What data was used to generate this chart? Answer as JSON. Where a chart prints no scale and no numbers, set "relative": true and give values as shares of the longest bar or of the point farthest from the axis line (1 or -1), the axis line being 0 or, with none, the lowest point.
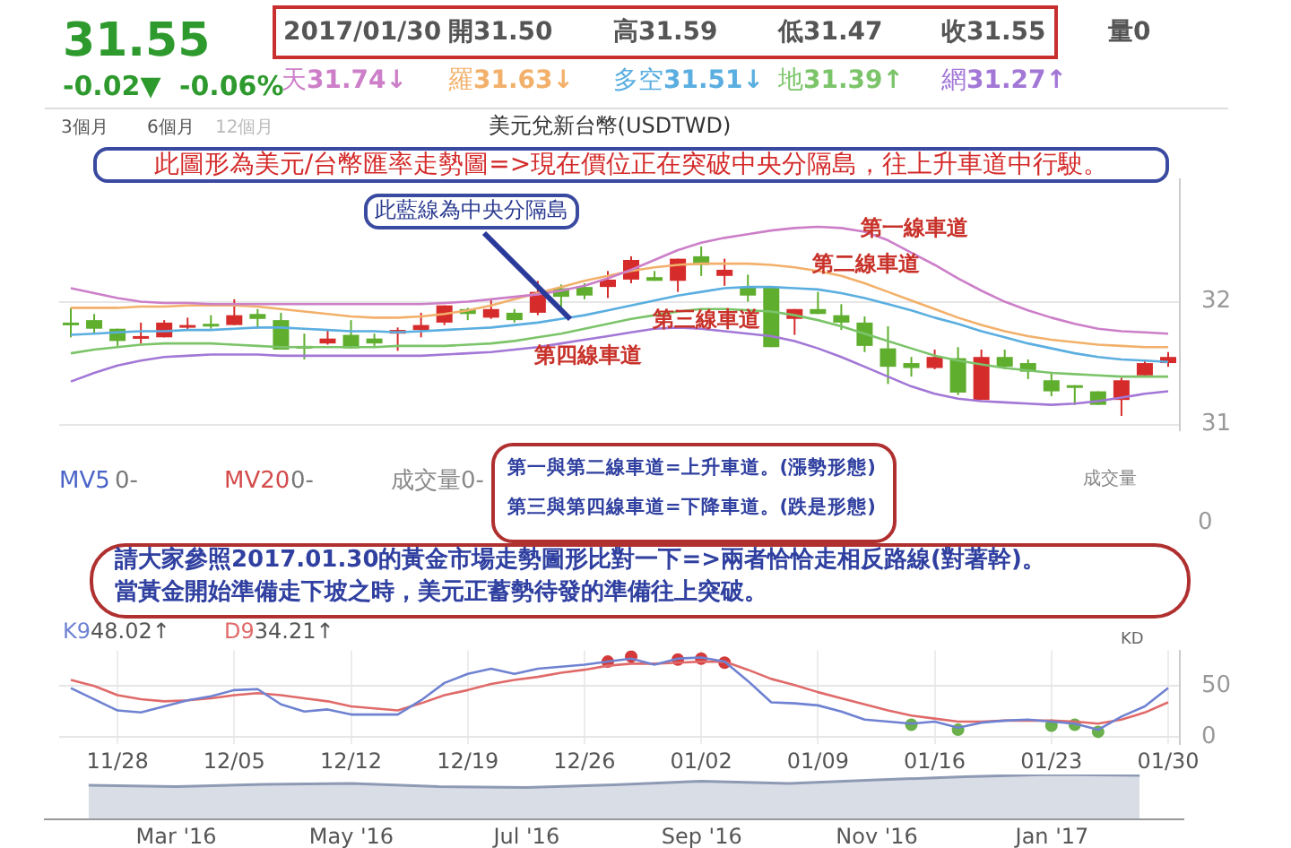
{
  "chart_data": [
    {
      "type": "candlestick",
      "title": "美元兌新台幣(USDTWD)",
      "categories": [
        null,
        null,
        null,
        null,
        null,
        null,
        null,
        null,
        null,
        null,
        null,
        null,
        null,
        null,
        null,
        null,
        null,
        null,
        null,
        null,
        null,
        null,
        null,
        null,
        null,
        null,
        null,
        null,
        null,
        null,
        null,
        null,
        null,
        null,
        null,
        null,
        null,
        null,
        null,
        null,
        null,
        null,
        null,
        null,
        null,
        null,
        null,
        null
      ],
      "ohlc": [
        [
          31.83,
          31.95,
          31.71,
          31.82
        ],
        [
          31.85,
          31.9,
          31.74,
          31.78
        ],
        [
          31.78,
          31.78,
          31.64,
          31.68
        ],
        [
          31.7,
          31.83,
          31.66,
          31.72
        ],
        [
          31.71,
          31.85,
          31.71,
          31.83
        ],
        [
          31.79,
          31.87,
          31.77,
          31.81
        ],
        [
          31.82,
          31.89,
          31.78,
          31.8
        ],
        [
          31.81,
          32.02,
          31.81,
          31.89
        ],
        [
          31.9,
          31.94,
          31.78,
          31.86
        ],
        [
          31.85,
          31.91,
          31.61,
          31.61
        ],
        [
          31.64,
          31.74,
          31.53,
          31.62
        ],
        [
          31.66,
          31.77,
          31.65,
          31.7
        ],
        [
          31.73,
          31.85,
          31.62,
          31.62
        ],
        [
          31.7,
          31.74,
          31.63,
          31.66
        ],
        [
          31.74,
          31.79,
          31.6,
          31.77
        ],
        [
          31.77,
          31.91,
          31.71,
          31.81
        ],
        [
          31.83,
          31.97,
          31.81,
          31.97
        ],
        [
          31.94,
          31.95,
          31.85,
          31.9
        ],
        [
          31.87,
          32.02,
          31.86,
          31.94
        ],
        [
          31.91,
          31.94,
          31.83,
          31.85
        ],
        [
          31.91,
          32.17,
          31.89,
          32.08
        ],
        [
          32.11,
          32.14,
          31.95,
          32.04
        ],
        [
          32.12,
          32.15,
          32.02,
          32.05
        ],
        [
          32.12,
          32.25,
          32.03,
          32.18
        ],
        [
          32.18,
          32.37,
          32.15,
          32.34
        ],
        [
          32.2,
          32.25,
          32.17,
          32.17
        ],
        [
          32.17,
          32.35,
          32.08,
          32.35
        ],
        [
          32.37,
          32.45,
          32.21,
          32.3
        ],
        [
          32.21,
          32.35,
          32.13,
          32.26
        ],
        [
          32.12,
          32.22,
          32.0,
          32.05
        ],
        [
          32.12,
          32.12,
          31.63,
          31.63
        ],
        [
          31.86,
          31.94,
          31.73,
          31.94
        ],
        [
          31.94,
          32.08,
          31.9,
          31.9
        ],
        [
          31.89,
          31.98,
          31.77,
          31.83
        ],
        [
          31.83,
          31.88,
          31.59,
          31.64
        ],
        [
          31.62,
          31.8,
          31.33,
          31.47
        ],
        [
          31.5,
          31.55,
          31.39,
          31.46
        ],
        [
          31.46,
          31.61,
          31.45,
          31.55
        ],
        [
          31.54,
          31.63,
          31.24,
          31.26
        ],
        [
          31.2,
          31.61,
          31.2,
          31.55
        ],
        [
          31.55,
          31.61,
          31.45,
          31.47
        ],
        [
          31.5,
          31.53,
          31.37,
          31.43
        ],
        [
          31.36,
          31.43,
          31.23,
          31.27
        ],
        [
          31.32,
          31.32,
          31.16,
          31.3
        ],
        [
          31.27,
          31.27,
          31.16,
          31.16
        ],
        [
          31.2,
          31.38,
          31.07,
          31.36
        ],
        [
          31.4,
          31.53,
          31.4,
          31.5
        ],
        [
          31.5,
          31.59,
          31.47,
          31.55
        ]
      ],
      "colors": [
        "#5fae2e",
        "#5fae2e",
        "#5fae2e",
        "#d62b2b",
        "#d62b2b",
        "#d62b2b",
        "#5fae2e",
        "#d62b2b",
        "#5fae2e",
        "#5fae2e",
        "#5fae2e",
        "#d62b2b",
        "#5fae2e",
        "#5fae2e",
        "#d62b2b",
        "#d62b2b",
        "#d62b2b",
        "#5fae2e",
        "#d62b2b",
        "#5fae2e",
        "#d62b2b",
        "#5fae2e",
        "#5fae2e",
        "#d62b2b",
        "#d62b2b",
        "#5fae2e",
        "#d62b2b",
        "#5fae2e",
        "#d62b2b",
        "#5fae2e",
        "#5fae2e",
        "#d62b2b",
        "#5fae2e",
        "#5fae2e",
        "#5fae2e",
        "#5fae2e",
        "#5fae2e",
        "#d62b2b",
        "#5fae2e",
        "#d62b2b",
        "#5fae2e",
        "#5fae2e",
        "#5fae2e",
        "#5fae2e",
        "#5fae2e",
        "#d62b2b",
        "#d62b2b",
        "#d62b2b"
      ],
      "series": [
        {
          "name": "天",
          "type": "line",
          "color": "#cc7fc8",
          "values": [
            32.11,
            32.07,
            32.03,
            32.0,
            31.99,
            31.99,
            31.98,
            31.98,
            31.98,
            31.98,
            31.98,
            31.98,
            31.98,
            31.98,
            31.98,
            31.98,
            31.99,
            32.0,
            32.02,
            32.04,
            32.06,
            32.09,
            32.13,
            32.19,
            32.26,
            32.34,
            32.42,
            32.48,
            32.52,
            32.55,
            32.58,
            32.6,
            32.61,
            32.6,
            32.57,
            32.5,
            32.4,
            32.3,
            32.19,
            32.09,
            32.0,
            31.93,
            31.87,
            31.82,
            31.78,
            31.76,
            31.75,
            31.74
          ]
        },
        {
          "name": "羅",
          "type": "line",
          "color": "#f2b06a",
          "values": [
            31.95,
            31.95,
            31.95,
            31.96,
            31.96,
            31.97,
            31.97,
            31.97,
            31.96,
            31.94,
            31.92,
            31.9,
            31.88,
            31.87,
            31.87,
            31.88,
            31.9,
            31.93,
            31.97,
            32.02,
            32.07,
            32.12,
            32.17,
            32.21,
            32.25,
            32.28,
            32.3,
            32.31,
            32.31,
            32.31,
            32.3,
            32.28,
            32.25,
            32.21,
            32.15,
            32.08,
            32.01,
            31.94,
            31.87,
            31.81,
            31.76,
            31.72,
            31.69,
            31.67,
            31.65,
            31.64,
            31.63,
            31.63
          ]
        },
        {
          "name": "多空",
          "type": "line",
          "color": "#5aaee0",
          "values": [
            31.73,
            31.74,
            31.75,
            31.76,
            31.76,
            31.77,
            31.77,
            31.78,
            31.79,
            31.79,
            31.78,
            31.77,
            31.76,
            31.76,
            31.75,
            31.76,
            31.77,
            31.78,
            31.79,
            31.81,
            31.83,
            31.86,
            31.89,
            31.93,
            31.97,
            32.01,
            32.05,
            32.08,
            32.11,
            32.12,
            32.12,
            32.11,
            32.1,
            32.07,
            32.03,
            31.98,
            31.93,
            31.87,
            31.82,
            31.76,
            31.71,
            31.66,
            31.62,
            31.58,
            31.55,
            31.53,
            31.52,
            31.51
          ]
        },
        {
          "name": "地",
          "type": "line",
          "color": "#7cc46a",
          "values": [
            31.58,
            31.61,
            31.63,
            31.65,
            31.66,
            31.66,
            31.66,
            31.65,
            31.64,
            31.63,
            31.63,
            31.63,
            31.63,
            31.63,
            31.64,
            31.64,
            31.64,
            31.65,
            31.66,
            31.68,
            31.71,
            31.74,
            31.78,
            31.82,
            31.86,
            31.89,
            31.92,
            31.94,
            31.94,
            31.93,
            31.92,
            31.89,
            31.85,
            31.8,
            31.74,
            31.68,
            31.62,
            31.56,
            31.52,
            31.49,
            31.46,
            31.44,
            31.42,
            31.41,
            31.4,
            31.39,
            31.39,
            31.39
          ]
        },
        {
          "name": "網",
          "type": "line",
          "color": "#a277d6",
          "values": [
            31.35,
            31.42,
            31.48,
            31.52,
            31.55,
            31.56,
            31.57,
            31.57,
            31.57,
            31.56,
            31.56,
            31.56,
            31.56,
            31.56,
            31.56,
            31.56,
            31.57,
            31.58,
            31.59,
            31.61,
            31.63,
            31.66,
            31.69,
            31.72,
            31.75,
            31.78,
            31.79,
            31.78,
            31.76,
            31.74,
            31.72,
            31.68,
            31.62,
            31.55,
            31.47,
            31.39,
            31.31,
            31.25,
            31.21,
            31.19,
            31.18,
            31.17,
            31.16,
            31.17,
            31.19,
            31.22,
            31.25,
            31.27
          ]
        }
      ],
      "ylim": [
        30.95,
        33.0
      ],
      "yticks": [
        31,
        32
      ],
      "grid": "y",
      "tick_labels": "y",
      "legend": "top",
      "annotations": [
        "此圖形為美元/台幣匯率走勢圖=>現在價位正在突破中央分隔島，往上升車道中行駛。",
        "此藍線為中央分隔島",
        "第一線車道",
        "第二線車道",
        "第三線車道",
        "第四線車道",
        "第一與第二線車道=上升車道。(漲勢形態)",
        "第三與第四線車道=下降車道。(跌是形態)",
        "MV5",
        "0-",
        "MV20",
        "0-",
        "成交量0-",
        "成交量",
        "0",
        "2017/01/30",
        "開31.50",
        "高31.59",
        "低31.47",
        "收31.55",
        "量0",
        "31.55",
        "-0.02▼",
        "-0.06%",
        "31.74↓",
        "31.63↓",
        "31.51↓",
        "31.39↑",
        "31.27↑",
        "3個月",
        "6個月",
        "12個月"
      ]
    },
    {
      "type": "line",
      "categories": [
        null,
        null,
        "11/28",
        null,
        null,
        null,
        null,
        "12/05",
        null,
        null,
        null,
        null,
        "12/12",
        null,
        null,
        null,
        null,
        "12/19",
        null,
        null,
        null,
        null,
        "12/26",
        null,
        null,
        null,
        null,
        "01/02",
        null,
        null,
        null,
        null,
        "01/09",
        null,
        null,
        null,
        null,
        "01/16",
        null,
        null,
        null,
        null,
        "01/23",
        null,
        null,
        null,
        null,
        "01/30"
      ],
      "series": [
        {
          "name": "K9",
          "color": "#6f82d2",
          "values": [
            48,
            37,
            26,
            24,
            30,
            36,
            40,
            46,
            47,
            32,
            25,
            27,
            22,
            22,
            22,
            36,
            53,
            62,
            67,
            62,
            67,
            69,
            71,
            74,
            77,
            71,
            77,
            78,
            74,
            55,
            34,
            33,
            31,
            25,
            17,
            15,
            13,
            15,
            9,
            14,
            16,
            17,
            15,
            13,
            7,
            20,
            30,
            48
          ]
        },
        {
          "name": "D9",
          "color": "#e06a6a",
          "values": [
            56,
            50,
            41,
            37,
            35,
            36,
            38,
            41,
            43,
            41,
            38,
            35,
            30,
            28,
            26,
            33,
            41,
            46,
            52,
            56,
            59,
            63,
            66,
            70,
            72,
            72,
            73,
            74,
            74,
            66,
            57,
            51,
            44,
            38,
            32,
            26,
            21,
            18,
            15,
            15,
            16,
            16,
            16,
            15,
            13,
            17,
            24,
            34
          ]
        },
        {
          "type": "scatter",
          "marker": "circle",
          "color": "#d43a3a",
          "values": [
            null,
            null,
            null,
            null,
            null,
            null,
            null,
            null,
            null,
            null,
            null,
            null,
            null,
            null,
            null,
            null,
            null,
            null,
            null,
            null,
            null,
            null,
            null,
            74,
            79,
            null,
            76,
            77,
            73,
            null,
            null,
            null,
            null,
            null,
            null,
            null,
            null,
            null,
            null,
            null,
            null,
            null,
            null,
            null,
            null,
            null,
            null,
            null
          ]
        },
        {
          "type": "scatter",
          "marker": "circle",
          "color": "#6ab04c",
          "values": [
            null,
            null,
            null,
            null,
            null,
            null,
            null,
            null,
            null,
            null,
            null,
            null,
            null,
            null,
            null,
            null,
            null,
            null,
            null,
            null,
            null,
            null,
            null,
            null,
            null,
            null,
            null,
            null,
            null,
            null,
            null,
            null,
            null,
            null,
            null,
            null,
            12,
            null,
            7,
            null,
            null,
            null,
            11,
            12,
            5,
            null,
            null,
            null
          ]
        }
      ],
      "ylim": [
        -7,
        85
      ],
      "yticks": [
        0,
        50
      ],
      "grid": true,
      "legend": "top left",
      "marker": "none",
      "annotations": [
        "請大家參照2017.01.30的黃金市場走勢圖形比對一下=>兩者恰恰走相反路線(對著幹)。",
        "當黃金開始準備走下坡之時，美元正蓄勢待發的準備往上突破。",
        "48.02↑",
        "34.21↑",
        "KD"
      ]
    },
    {
      "type": "area",
      "relative": true,
      "color": "#8e9ab4",
      "categories": [
        null,
        "Mar '16",
        null,
        "May '16",
        null,
        "Jul '16",
        null,
        "Sep '16",
        null,
        "Nov '16",
        null,
        "Jan '17",
        null
      ],
      "values": [
        0.76,
        0.73,
        0.78,
        0.8,
        0.73,
        0.71,
        0.77,
        0.85,
        0.8,
        0.88,
        0.95,
        1,
        0.98
      ]
    }
  ]
}
